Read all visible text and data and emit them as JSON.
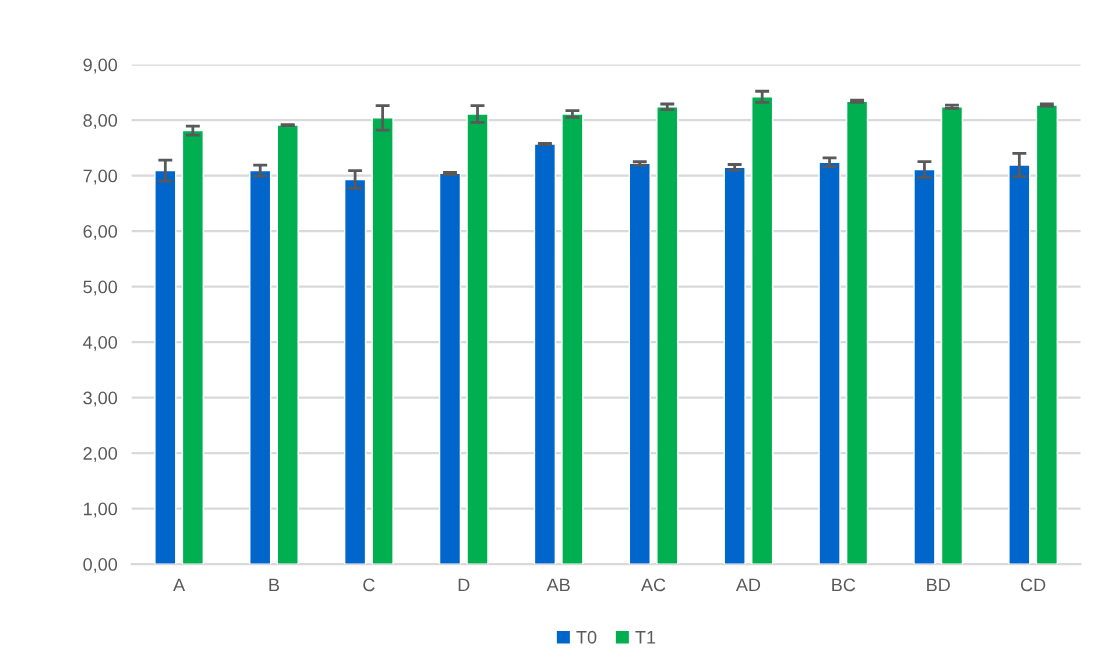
{
  "chart_data": {
    "type": "bar",
    "categories": [
      "A",
      "B",
      "C",
      "D",
      "AB",
      "AC",
      "AD",
      "BC",
      "BD",
      "CD"
    ],
    "series": [
      {
        "name": "T0",
        "color": "#0066cc",
        "values": [
          7.09,
          7.09,
          6.93,
          7.04,
          7.57,
          7.22,
          7.15,
          7.24,
          7.11,
          7.19
        ],
        "errors": [
          0.19,
          0.1,
          0.16,
          0.02,
          0.01,
          0.03,
          0.05,
          0.08,
          0.14,
          0.21
        ]
      },
      {
        "name": "T1",
        "color": "#00b050",
        "values": [
          7.81,
          7.91,
          8.04,
          8.11,
          8.11,
          8.24,
          8.42,
          8.34,
          8.24,
          8.27
        ],
        "errors": [
          0.08,
          0.01,
          0.22,
          0.15,
          0.06,
          0.05,
          0.1,
          0.02,
          0.03,
          0.02
        ]
      }
    ],
    "ylim": [
      0,
      9
    ],
    "yticks": [
      {
        "value": 0,
        "label": "0,00"
      },
      {
        "value": 1,
        "label": "1,00"
      },
      {
        "value": 2,
        "label": "2,00"
      },
      {
        "value": 3,
        "label": "3,00"
      },
      {
        "value": 4,
        "label": "4,00"
      },
      {
        "value": 5,
        "label": "5,00"
      },
      {
        "value": 6,
        "label": "6,00"
      },
      {
        "value": 7,
        "label": "7,00"
      },
      {
        "value": 8,
        "label": "8,00"
      },
      {
        "value": 9,
        "label": "9,00"
      }
    ],
    "grid": "y",
    "legend": "bottom"
  }
}
